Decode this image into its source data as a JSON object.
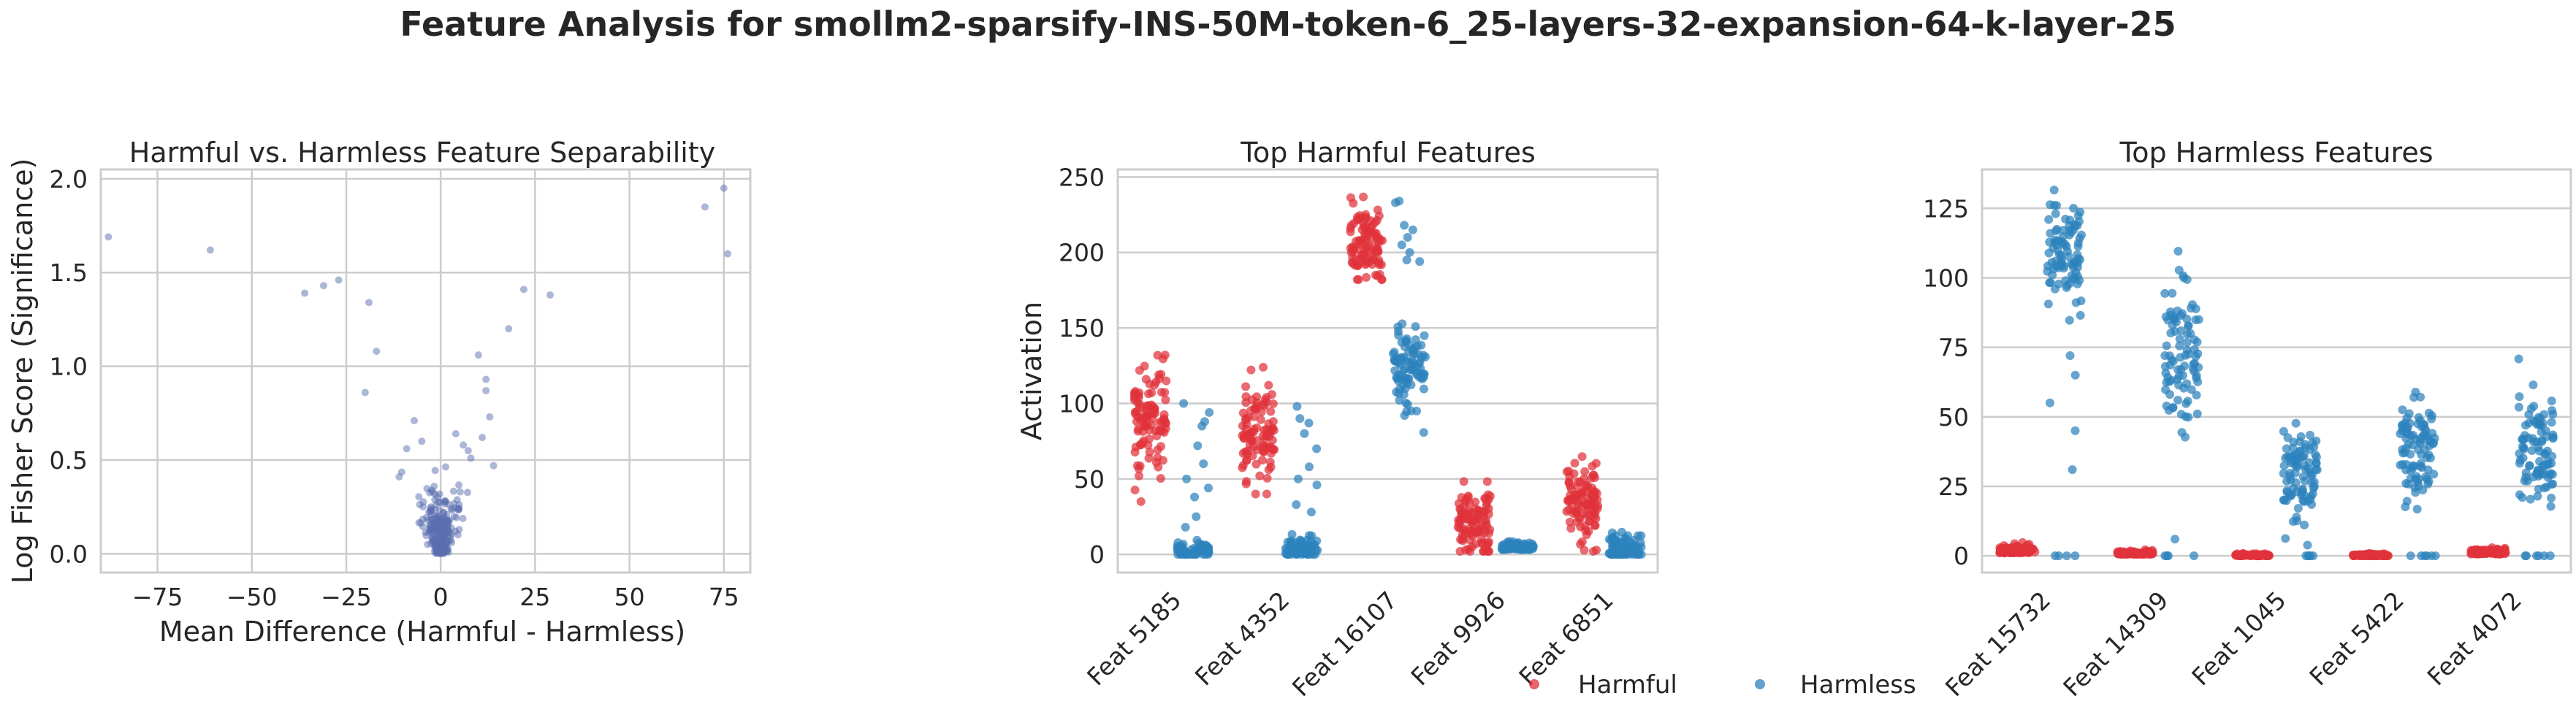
{
  "figure": {
    "suptitle": "Feature Analysis for smollm2-sparsify-INS-50M-token-6_25-layers-32-expansion-64-k-layer-25"
  },
  "colors": {
    "harmful": "#e0323a",
    "harmless": "#2c82bd",
    "scatter": "#5a6db0"
  },
  "legend": {
    "placement": "bottom-center",
    "entries": [
      "Harmful",
      "Harmless"
    ]
  },
  "chart_data": [
    {
      "type": "scatter",
      "title": "Harmful vs. Harmless Feature Separability",
      "xlabel": "Mean Difference (Harmful - Harmless)",
      "ylabel": "Log Fisher Score (Significance)",
      "xlim": [
        -90,
        82
      ],
      "ylim": [
        -0.1,
        2.05
      ],
      "xticks": [
        -75,
        -50,
        -25,
        0,
        25,
        50,
        75
      ],
      "yticks": [
        0.0,
        0.5,
        1.0,
        1.5,
        2.0
      ],
      "xtick_labels": [
        "−75",
        "−50",
        "−25",
        "0",
        "25",
        "50",
        "75"
      ],
      "ytick_labels": [
        "0.0",
        "0.5",
        "1.0",
        "1.5",
        "2.0"
      ],
      "grid": true,
      "outlier_points": [
        {
          "x": -88,
          "y": 1.69
        },
        {
          "x": -61,
          "y": 1.62
        },
        {
          "x": -36,
          "y": 1.39
        },
        {
          "x": -31,
          "y": 1.43
        },
        {
          "x": -27,
          "y": 1.46
        },
        {
          "x": -19,
          "y": 1.34
        },
        {
          "x": -17,
          "y": 1.08
        },
        {
          "x": -20,
          "y": 0.86
        },
        {
          "x": 70,
          "y": 1.85
        },
        {
          "x": 75,
          "y": 1.95
        },
        {
          "x": 76,
          "y": 1.6
        },
        {
          "x": 22,
          "y": 1.41
        },
        {
          "x": 29,
          "y": 1.38
        },
        {
          "x": 18,
          "y": 1.2
        },
        {
          "x": 10,
          "y": 1.06
        },
        {
          "x": 12,
          "y": 0.93
        },
        {
          "x": 12,
          "y": 0.87
        },
        {
          "x": 13,
          "y": 0.73
        },
        {
          "x": 11,
          "y": 0.62
        },
        {
          "x": -7,
          "y": 0.71
        },
        {
          "x": -9,
          "y": 0.56
        },
        {
          "x": -5,
          "y": 0.6
        },
        {
          "x": 4,
          "y": 0.64
        },
        {
          "x": 6,
          "y": 0.58
        },
        {
          "x": 8,
          "y": 0.51
        },
        {
          "x": -11,
          "y": 0.41
        },
        {
          "x": 14,
          "y": 0.47
        }
      ],
      "cluster": {
        "note": "dense volcano-shaped cluster near x=0",
        "x_center": 0,
        "x_spread_at_top": 10,
        "y_max": 0.55,
        "count": 260
      }
    },
    {
      "type": "scatter",
      "subtype": "strip",
      "title": "Top Harmful Features",
      "xlabel": "",
      "ylabel": "Activation",
      "categories": [
        "Feat 5185",
        "Feat 4352",
        "Feat 16107",
        "Feat 9926",
        "Feat 6851"
      ],
      "ylim": [
        -12,
        255
      ],
      "yticks": [
        0,
        50,
        100,
        150,
        200,
        250
      ],
      "grid": true,
      "series": [
        {
          "name": "Harmful",
          "color": "#e0323a",
          "groups": [
            {
              "center": 90,
              "spread": 18,
              "min": 35,
              "max": 133,
              "count": 100
            },
            {
              "center": 80,
              "spread": 20,
              "min": 40,
              "max": 124,
              "count": 100
            },
            {
              "center": 205,
              "spread": 13,
              "min": 182,
              "max": 242,
              "count": 100
            },
            {
              "center": 22,
              "spread": 11,
              "min": 2,
              "max": 53,
              "count": 100
            },
            {
              "center": 32,
              "spread": 14,
              "min": 2,
              "max": 72,
              "count": 100
            }
          ]
        },
        {
          "name": "Harmless",
          "color": "#2c82bd",
          "groups": [
            {
              "center": 3,
              "spread": 3,
              "min": 0,
              "max": 12,
              "count": 70,
              "extra": [
                100,
                94,
                88,
                85,
                72,
                60,
                50,
                44,
                38,
                25,
                18
              ]
            },
            {
              "center": 4,
              "spread": 4,
              "min": 0,
              "max": 14,
              "count": 70,
              "extra": [
                98,
                90,
                87,
                80,
                70,
                58,
                50,
                46,
                33,
                28
              ]
            },
            {
              "center": 122,
              "spread": 15,
              "min": 35,
              "max": 160,
              "count": 90,
              "extra": [
                234,
                233,
                218,
                215,
                210,
                205,
                200,
                195,
                194
              ]
            },
            {
              "center": 3,
              "spread": 2.5,
              "min": 0,
              "max": 12,
              "count": 80
            },
            {
              "center": 4,
              "spread": 5,
              "min": 0,
              "max": 30,
              "count": 80
            }
          ]
        }
      ]
    },
    {
      "type": "scatter",
      "subtype": "strip",
      "title": "Top Harmless Features",
      "xlabel": "",
      "ylabel": "",
      "categories": [
        "Feat 15732",
        "Feat 14309",
        "Feat 1045",
        "Feat 5422",
        "Feat 4072"
      ],
      "ylim": [
        -6,
        139
      ],
      "yticks": [
        0,
        25,
        50,
        75,
        100,
        125
      ],
      "grid": true,
      "series": [
        {
          "name": "Harmful",
          "color": "#e0323a",
          "groups": [
            {
              "center": 1,
              "spread": 1.2,
              "min": 0,
              "max": 8,
              "count": 90
            },
            {
              "center": 0.5,
              "spread": 0.6,
              "min": 0,
              "max": 3,
              "count": 90
            },
            {
              "center": 0,
              "spread": 0.3,
              "min": 0,
              "max": 1,
              "count": 90
            },
            {
              "center": 0,
              "spread": 0.3,
              "min": 0,
              "max": 1,
              "count": 90
            },
            {
              "center": 0.6,
              "spread": 1.0,
              "min": 0,
              "max": 10,
              "count": 90
            }
          ]
        },
        {
          "name": "Harmless",
          "color": "#2c82bd",
          "groups": [
            {
              "center": 108,
              "spread": 9,
              "min": 25,
              "max": 133,
              "count": 90,
              "extra": [
                0,
                0,
                0,
                0,
                31,
                45,
                55,
                65,
                72
              ]
            },
            {
              "center": 72,
              "spread": 15,
              "min": 20,
              "max": 113,
              "count": 90,
              "extra": [
                0,
                0,
                0,
                0,
                6
              ]
            },
            {
              "center": 30,
              "spread": 10,
              "min": 2,
              "max": 55,
              "count": 90,
              "extra": [
                0,
                0,
                0,
                0,
                0
              ]
            },
            {
              "center": 38,
              "spread": 8,
              "min": 10,
              "max": 61,
              "count": 90,
              "extra": [
                0,
                0,
                0,
                0,
                0,
                0
              ]
            },
            {
              "center": 40,
              "spread": 12,
              "min": 5,
              "max": 71,
              "count": 90,
              "extra": [
                0,
                0,
                0,
                0,
                0,
                0
              ]
            }
          ]
        }
      ]
    }
  ]
}
